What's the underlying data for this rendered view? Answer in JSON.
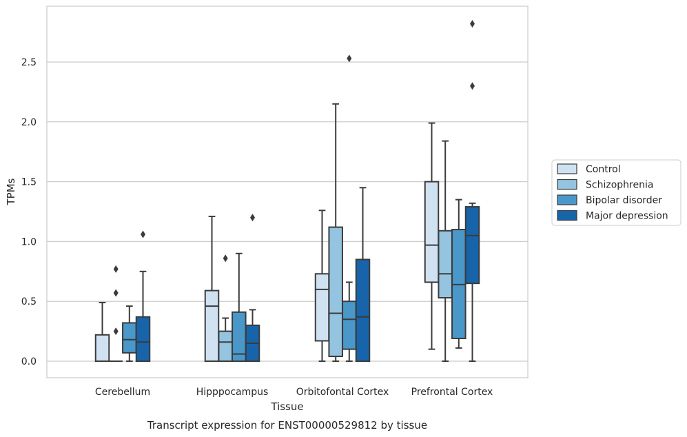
{
  "chart_data": {
    "type": "box",
    "title": "Transcript expression for ENST00000529812 by tissue",
    "xlabel": "Tissue",
    "ylabel": "TPMs",
    "ylim": [
      -0.14,
      2.97
    ],
    "yticks": [
      "0.0",
      "0.5",
      "1.0",
      "1.5",
      "2.0",
      "2.5"
    ],
    "grid": true,
    "legend_position": "right",
    "categories": [
      "Cerebellum",
      "Hipppocampus",
      "Orbitofontal Cortex",
      "Prefrontal Cortex"
    ],
    "series": [
      {
        "name": "Control",
        "color": "#d0e1f2",
        "boxes": [
          {
            "whislo": 0.0,
            "q1": 0.0,
            "med": 0.0,
            "q3": 0.22,
            "whishi": 0.49,
            "fliers": []
          },
          {
            "whislo": 0.0,
            "q1": 0.0,
            "med": 0.46,
            "q3": 0.59,
            "whishi": 1.21,
            "fliers": []
          },
          {
            "whislo": 0.0,
            "q1": 0.17,
            "med": 0.6,
            "q3": 0.73,
            "whishi": 1.26,
            "fliers": []
          },
          {
            "whislo": 0.1,
            "q1": 0.66,
            "med": 0.97,
            "q3": 1.5,
            "whishi": 1.99,
            "fliers": []
          }
        ]
      },
      {
        "name": "Schizophrenia",
        "color": "#94c4df",
        "boxes": [
          {
            "whislo": 0.0,
            "q1": 0.0,
            "med": 0.0,
            "q3": 0.0,
            "whishi": 0.0,
            "fliers": [
              0.25,
              0.57,
              0.77
            ]
          },
          {
            "whislo": 0.0,
            "q1": 0.0,
            "med": 0.16,
            "q3": 0.25,
            "whishi": 0.36,
            "fliers": [
              0.86
            ]
          },
          {
            "whislo": 0.0,
            "q1": 0.04,
            "med": 0.4,
            "q3": 1.12,
            "whishi": 2.15,
            "fliers": []
          },
          {
            "whislo": 0.0,
            "q1": 0.53,
            "med": 0.73,
            "q3": 1.09,
            "whishi": 1.84,
            "fliers": []
          }
        ]
      },
      {
        "name": "Bipolar disorder",
        "color": "#4a98c9",
        "boxes": [
          {
            "whislo": 0.0,
            "q1": 0.07,
            "med": 0.18,
            "q3": 0.32,
            "whishi": 0.46,
            "fliers": []
          },
          {
            "whislo": 0.0,
            "q1": 0.0,
            "med": 0.06,
            "q3": 0.41,
            "whishi": 0.9,
            "fliers": []
          },
          {
            "whislo": 0.0,
            "q1": 0.1,
            "med": 0.35,
            "q3": 0.5,
            "whishi": 0.66,
            "fliers": [
              2.53
            ]
          },
          {
            "whislo": 0.11,
            "q1": 0.19,
            "med": 0.64,
            "q3": 1.1,
            "whishi": 1.35,
            "fliers": []
          }
        ]
      },
      {
        "name": "Major depression",
        "color": "#1764ab",
        "boxes": [
          {
            "whislo": 0.0,
            "q1": 0.0,
            "med": 0.16,
            "q3": 0.37,
            "whishi": 0.75,
            "fliers": [
              1.06
            ]
          },
          {
            "whislo": 0.0,
            "q1": 0.0,
            "med": 0.15,
            "q3": 0.3,
            "whishi": 0.43,
            "fliers": [
              1.2
            ]
          },
          {
            "whislo": 0.0,
            "q1": 0.0,
            "med": 0.37,
            "q3": 0.85,
            "whishi": 1.45,
            "fliers": []
          },
          {
            "whislo": 0.0,
            "q1": 0.65,
            "med": 1.05,
            "q3": 1.29,
            "whishi": 1.32,
            "fliers": [
              2.3,
              2.82
            ]
          }
        ]
      }
    ]
  }
}
